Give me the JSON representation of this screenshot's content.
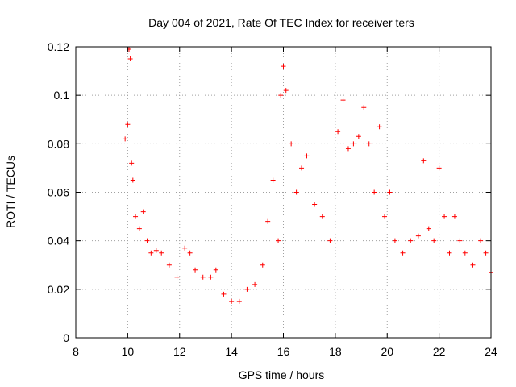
{
  "chart_data": {
    "type": "scatter",
    "title": "Day 004 of 2021, Rate Of TEC Index for receiver ters",
    "xlabel": "GPS time / hours",
    "ylabel": "ROTI / TECUs",
    "xlim": [
      8,
      24
    ],
    "ylim": [
      0,
      0.12
    ],
    "xticks": [
      "8",
      "10",
      "12",
      "14",
      "16",
      "18",
      "20",
      "22",
      "24"
    ],
    "yticks": [
      "0",
      "0.02",
      "0.04",
      "0.06",
      "0.08",
      "0.1",
      "0.12"
    ],
    "grid": true,
    "marker": "plus",
    "color": "#ff0000",
    "series": [
      {
        "x": [
          9.9,
          10.0,
          10.05,
          10.1,
          10.15,
          10.2,
          10.3,
          10.45,
          10.6,
          10.75,
          10.9,
          11.1,
          11.3,
          11.6,
          11.9,
          12.2,
          12.4,
          12.6,
          12.9,
          13.2,
          13.4,
          13.7,
          14.0,
          14.3,
          14.6,
          14.9,
          15.2,
          15.4,
          15.6,
          15.8,
          15.9,
          16.0,
          16.1,
          16.3,
          16.5,
          16.7,
          16.9,
          17.2,
          17.5,
          17.8,
          18.1,
          18.3,
          18.5,
          18.7,
          18.9,
          19.1,
          19.3,
          19.5,
          19.7,
          19.9,
          20.1,
          20.3,
          20.6,
          20.9,
          21.2,
          21.4,
          21.6,
          21.8,
          22.0,
          22.2,
          22.4,
          22.6,
          22.8,
          23.0,
          23.3,
          23.6,
          23.8,
          24.0
        ],
        "y": [
          0.082,
          0.088,
          0.119,
          0.115,
          0.072,
          0.065,
          0.05,
          0.045,
          0.052,
          0.04,
          0.035,
          0.036,
          0.035,
          0.03,
          0.025,
          0.037,
          0.035,
          0.028,
          0.025,
          0.025,
          0.028,
          0.018,
          0.015,
          0.015,
          0.02,
          0.022,
          0.03,
          0.048,
          0.065,
          0.04,
          0.1,
          0.112,
          0.102,
          0.08,
          0.06,
          0.07,
          0.075,
          0.055,
          0.05,
          0.04,
          0.085,
          0.098,
          0.078,
          0.08,
          0.083,
          0.095,
          0.08,
          0.06,
          0.087,
          0.05,
          0.06,
          0.04,
          0.035,
          0.04,
          0.042,
          0.073,
          0.045,
          0.04,
          0.07,
          0.05,
          0.035,
          0.05,
          0.04,
          0.035,
          0.03,
          0.04,
          0.035,
          0.027
        ]
      }
    ]
  }
}
